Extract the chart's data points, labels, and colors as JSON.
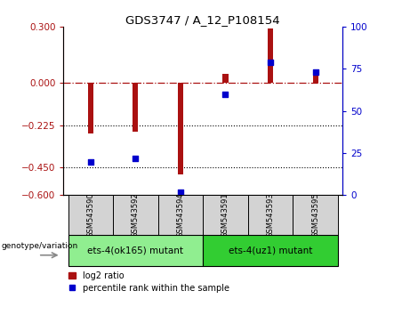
{
  "title": "GDS3747 / A_12_P108154",
  "samples": [
    "GSM543590",
    "GSM543592",
    "GSM543594",
    "GSM543591",
    "GSM543593",
    "GSM543595"
  ],
  "log2_ratio": [
    -0.27,
    -0.26,
    -0.49,
    0.05,
    0.29,
    0.07
  ],
  "percentile_rank": [
    20,
    22,
    2,
    60,
    79,
    73
  ],
  "ylim_left": [
    -0.6,
    0.3
  ],
  "ylim_right": [
    0,
    100
  ],
  "yticks_left": [
    0.3,
    0,
    -0.225,
    -0.45,
    -0.6
  ],
  "yticks_right": [
    100,
    75,
    50,
    25,
    0
  ],
  "bar_color": "#aa1111",
  "dot_color": "#0000cc",
  "hline_y": 0,
  "dotted_lines": [
    -0.225,
    -0.45
  ],
  "group1_label": "ets-4(ok165) mutant",
  "group2_label": "ets-4(uz1) mutant",
  "group1_color": "#90ee90",
  "group2_color": "#32cd32",
  "legend_bar_label": "log2 ratio",
  "legend_dot_label": "percentile rank within the sample",
  "genotype_label": "genotype/variation",
  "bar_width": 0.12,
  "sample_box_color": "#d3d3d3",
  "plot_bg_color": "#ffffff",
  "spine_color": "#000000"
}
